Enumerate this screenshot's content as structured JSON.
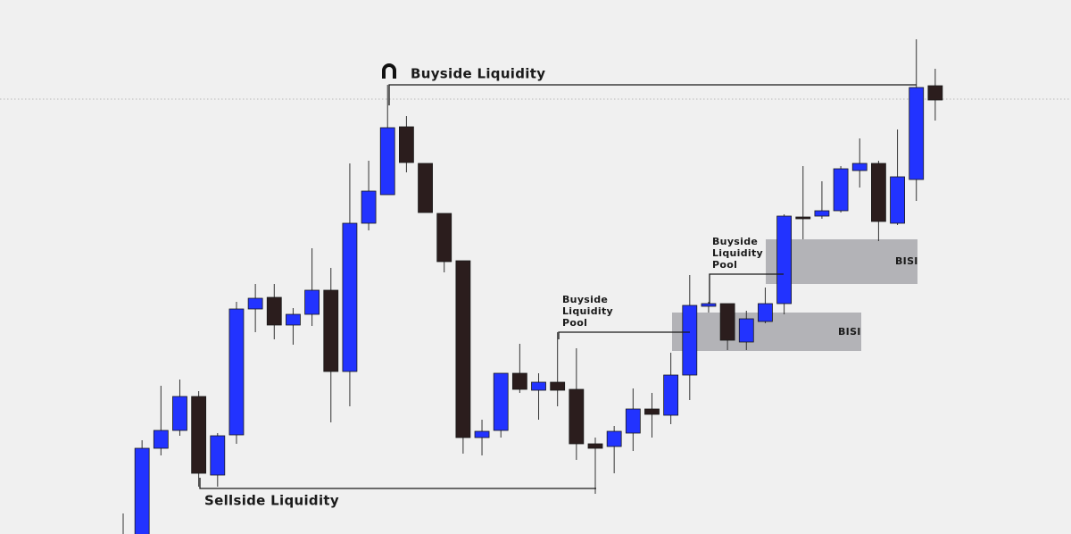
{
  "chart_data": {
    "type": "candlestick",
    "ylim": [
      0,
      598
    ],
    "up_color": "#2233ff",
    "down_color": "#2b1d1d",
    "open": [
      -22,
      -22,
      96,
      116,
      154,
      66,
      111,
      252,
      265,
      234,
      246,
      273,
      182,
      348,
      380,
      456,
      415,
      359,
      306,
      108,
      116,
      180,
      161,
      170,
      162,
      101,
      98,
      113,
      140,
      133,
      178,
      255,
      258,
      215,
      238,
      258,
      355,
      356,
      362,
      407,
      415,
      348,
      397,
      502
    ],
    "high": [
      23,
      105,
      166,
      173,
      160,
      113,
      260,
      280,
      280,
      253,
      320,
      298,
      415,
      418,
      503,
      468,
      415,
      359,
      306,
      128,
      180,
      213,
      180,
      226,
      208,
      108,
      121,
      163,
      158,
      203,
      290,
      260,
      258,
      250,
      276,
      358,
      412,
      395,
      412,
      443,
      418,
      453,
      554,
      521
    ],
    "low": [
      -22,
      -22,
      88,
      110,
      53,
      53,
      101,
      226,
      218,
      212,
      233,
      125,
      143,
      340,
      380,
      405,
      360,
      293,
      90,
      88,
      108,
      158,
      128,
      143,
      83,
      45,
      68,
      93,
      108,
      123,
      150,
      248,
      206,
      206,
      236,
      246,
      330,
      353,
      360,
      388,
      328,
      346,
      373,
      463
    ],
    "close": [
      -2,
      96,
      116,
      154,
      68,
      110,
      252,
      264,
      234,
      246,
      273,
      182,
      348,
      384,
      455,
      416,
      360,
      305,
      108,
      115,
      180,
      162,
      170,
      161,
      101,
      96,
      115,
      140,
      134,
      178,
      256,
      258,
      217,
      241,
      258,
      356,
      353,
      362,
      409,
      415,
      350,
      400,
      500,
      486
    ],
    "annotations": {
      "buyside": "Buyside Liquidity",
      "sellside": "Sellside Liquidity",
      "pool_1": [
        "Buyside",
        "Liquidity",
        "Pool"
      ],
      "pool_2": [
        "Buyside",
        "Liquidity",
        "Pool"
      ],
      "bisi_1": "BISI",
      "bisi_2": "BISI"
    }
  }
}
